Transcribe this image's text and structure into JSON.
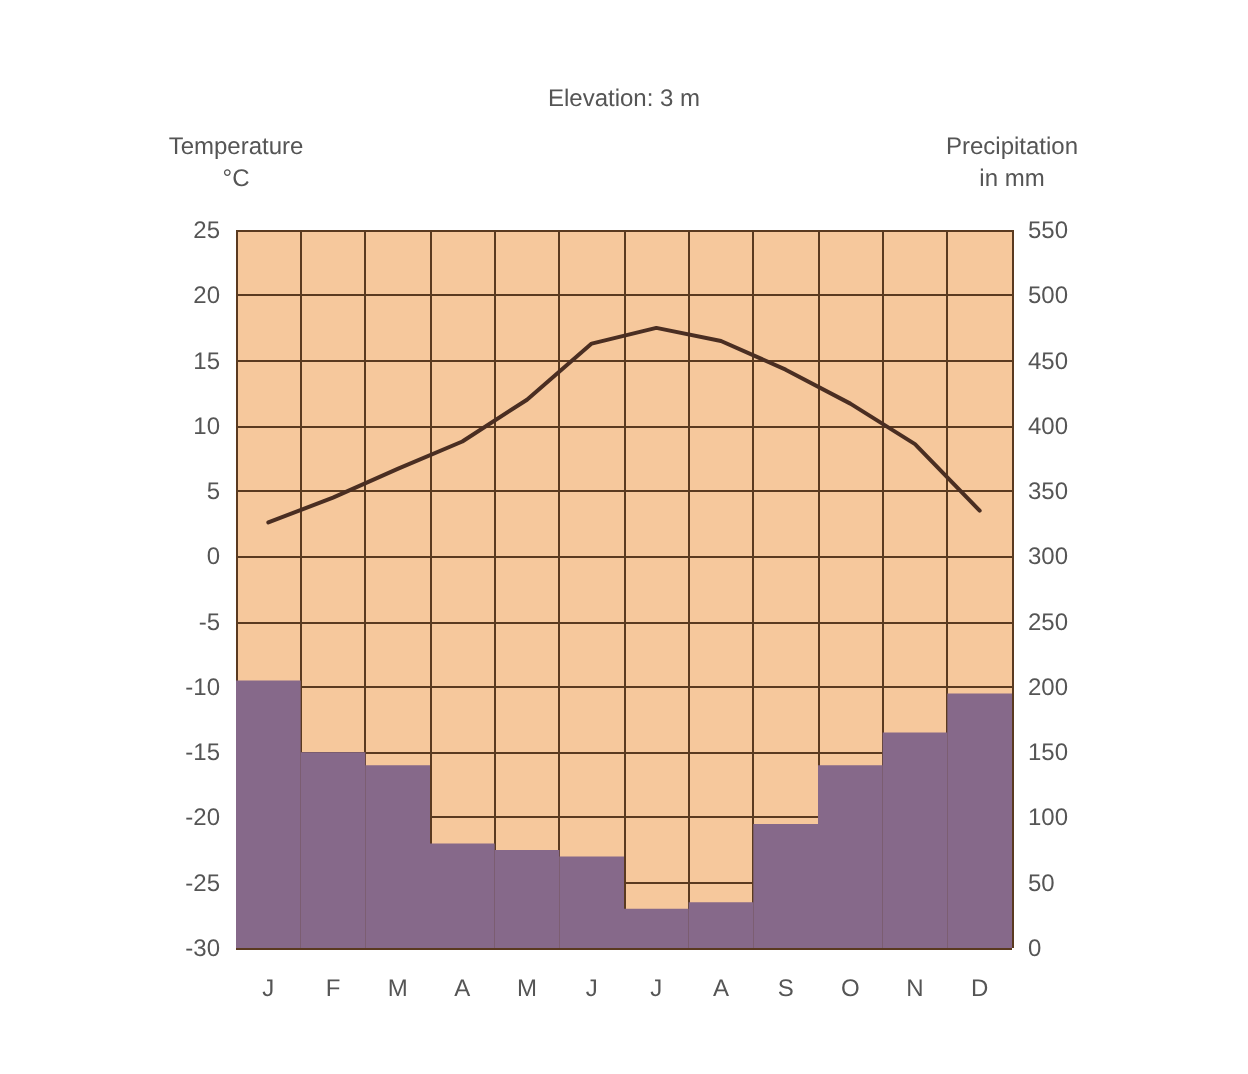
{
  "chart_data": {
    "type": "line",
    "title": "Elevation: 3 m",
    "ylabel": "Temperature\n°C",
    "y2label": "Precipitation\nin mm",
    "categories": [
      "J",
      "F",
      "M",
      "A",
      "M",
      "J",
      "J",
      "A",
      "S",
      "O",
      "N",
      "D"
    ],
    "series": [
      {
        "type": "bar",
        "axis": "y2",
        "color": "#86698a",
        "values": [
          205,
          150,
          140,
          80,
          75,
          70,
          30,
          35,
          95,
          140,
          165,
          195
        ]
      },
      {
        "color": "#4a2e22",
        "values": [
          2.6,
          4.5,
          6.7,
          8.8,
          12,
          16.3,
          17.5,
          16.5,
          14.3,
          11.7,
          8.6,
          3.5
        ]
      }
    ],
    "ylim": [
      -30,
      25
    ],
    "yticks": [
      -30,
      -25,
      -20,
      -15,
      -10,
      -5,
      0,
      5,
      10,
      15,
      20,
      25
    ],
    "y2lim": [
      0,
      550
    ],
    "y2ticks": [
      0,
      50,
      100,
      150,
      200,
      250,
      300,
      350,
      400,
      450,
      500,
      550
    ],
    "grid": true,
    "marker": "none",
    "line_style": "solid"
  }
}
